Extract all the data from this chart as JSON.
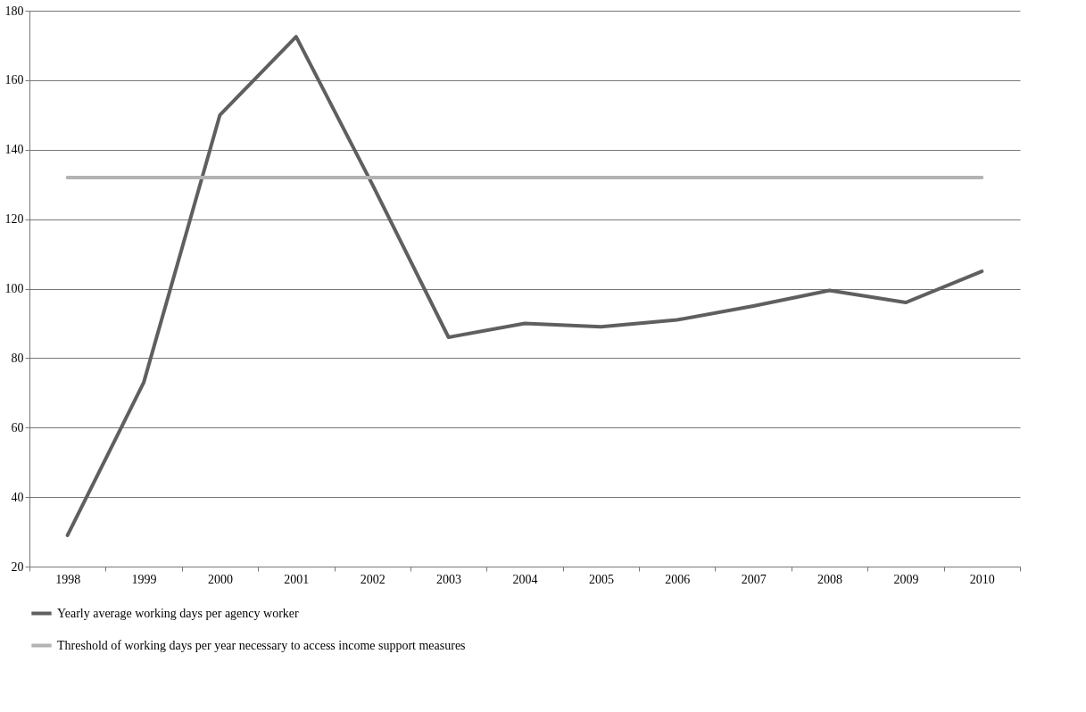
{
  "chart_data": {
    "type": "line",
    "categories": [
      "1998",
      "1999",
      "2000",
      "2001",
      "2002",
      "2003",
      "2004",
      "2005",
      "2006",
      "2007",
      "2008",
      "2009",
      "2010"
    ],
    "series": [
      {
        "name": "Yearly average working days per agency worker",
        "color": "#5f5f5f",
        "values": [
          29,
          73,
          150,
          172.5,
          130,
          86,
          90,
          89,
          91,
          95,
          99.5,
          96,
          105
        ]
      },
      {
        "name": "Threshold of working days per year necessary to access income support measures",
        "color": "#b3b3b3",
        "values": [
          132,
          132,
          132,
          132,
          132,
          132,
          132,
          132,
          132,
          132,
          132,
          132,
          132
        ]
      }
    ],
    "ylim": [
      20,
      180
    ],
    "yticks": [
      20,
      40,
      60,
      80,
      100,
      120,
      140,
      160,
      180
    ],
    "grid": "y",
    "legend": "bottom",
    "marker": "none",
    "line_style": "solid"
  }
}
